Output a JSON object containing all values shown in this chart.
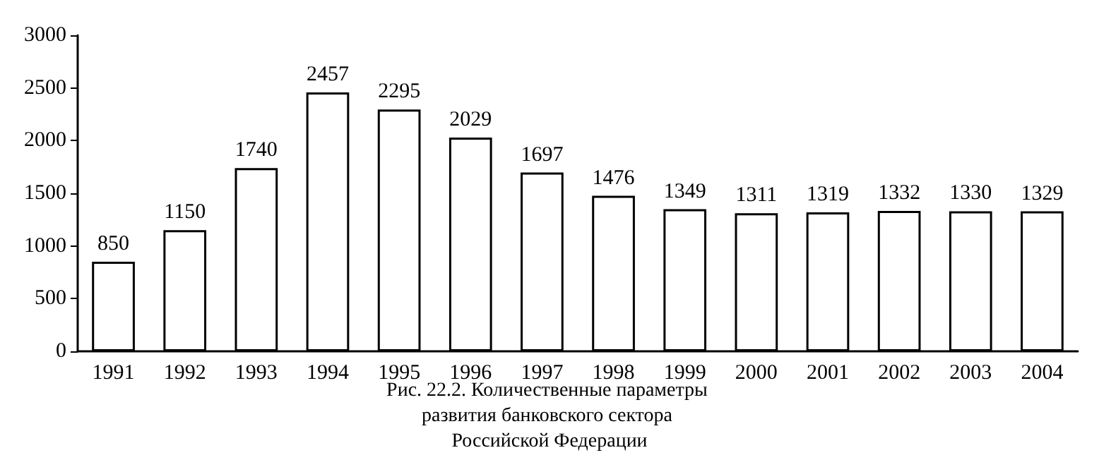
{
  "chart_data": {
    "type": "bar",
    "title": "Рис. 22.2. Количественные параметры развития банковского сектора Российской Федерации",
    "categories": [
      "1991",
      "1992",
      "1993",
      "1994",
      "1995",
      "1996",
      "1997",
      "1998",
      "1999",
      "2000",
      "2001",
      "2002",
      "2003",
      "2004"
    ],
    "values": [
      850,
      1150,
      1740,
      2457,
      2295,
      2029,
      1697,
      1476,
      1349,
      1311,
      1319,
      1332,
      1330,
      1329
    ],
    "color": "#ffffff",
    "ylim": [
      0,
      3000
    ],
    "yticks": [
      0,
      500,
      1000,
      1500,
      2000,
      2500,
      3000
    ],
    "grid": false,
    "data_labels": true
  }
}
